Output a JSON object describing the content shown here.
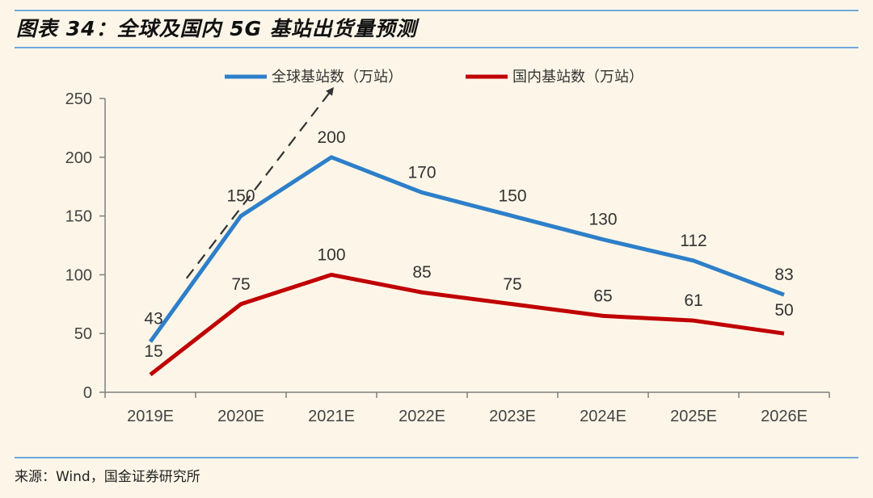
{
  "figure_title": "图表 34：全球及国内 5G 基站出货量预测",
  "source": "来源：Wind，国金证券研究所",
  "chart_data": {
    "type": "line",
    "categories": [
      "2019E",
      "2020E",
      "2021E",
      "2022E",
      "2023E",
      "2024E",
      "2025E",
      "2026E"
    ],
    "ylim": [
      0,
      250
    ],
    "yticks": [
      "0",
      "50",
      "100",
      "150",
      "200",
      "250"
    ],
    "grid": false,
    "legend_position": "top",
    "series": [
      {
        "name": "全球基站数（万站）",
        "color": "#2e7fc9",
        "values": [
          43,
          150,
          200,
          170,
          150,
          130,
          112,
          83
        ],
        "labels": [
          "43",
          "150",
          "200",
          "170",
          "150",
          "130",
          "112",
          "83"
        ]
      },
      {
        "name": "国内基站数（万站）",
        "color": "#c00000",
        "values": [
          15,
          75,
          100,
          85,
          75,
          65,
          61,
          50
        ],
        "labels": [
          "15",
          "75",
          "100",
          "85",
          "75",
          "65",
          "61",
          "50"
        ]
      }
    ],
    "annotations": [
      {
        "type": "dashed-arrow",
        "from": [
          0.4,
          97
        ],
        "to": [
          2.0,
          257
        ]
      }
    ]
  }
}
